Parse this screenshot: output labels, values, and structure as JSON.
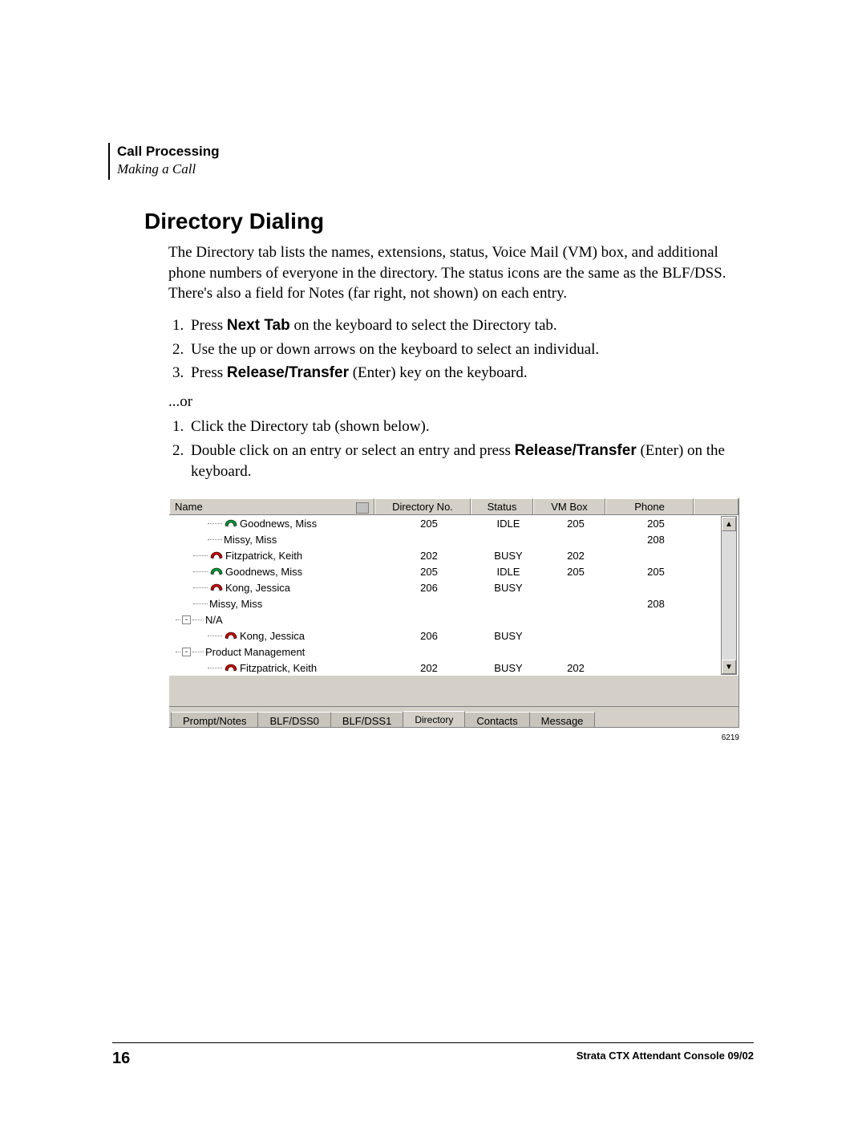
{
  "header": {
    "title": "Call Processing",
    "subtitle": "Making a Call"
  },
  "section": {
    "title": "Directory Dialing",
    "intro": "The Directory tab lists the names, extensions, status, Voice Mail (VM) box, and additional phone numbers of everyone in the directory. The status icons are the same as the BLF/DSS. There's also a field for Notes (far right, not shown) on each entry.",
    "steps_a_1_pre": "Press ",
    "steps_a_1_bold": "Next Tab",
    "steps_a_1_post": " on the keyboard to select the Directory tab.",
    "steps_a_2": "Use the up or down arrows on the keyboard to select an individual.",
    "steps_a_3_pre": "Press ",
    "steps_a_3_bold": "Release/Transfer",
    "steps_a_3_post": " (Enter) key on the keyboard.",
    "or": "...or",
    "steps_b_1": "Click the Directory tab (shown below).",
    "steps_b_2_pre": "Double click on an entry or select an entry and press ",
    "steps_b_2_bold": "Release/Transfer",
    "steps_b_2_post": " (Enter) on the keyboard."
  },
  "figure": {
    "columns": {
      "name": "Name",
      "dir": "Directory No.",
      "status": "Status",
      "vm": "VM Box",
      "phone": "Phone"
    },
    "rows": [
      {
        "indent": 40,
        "icon": "green",
        "name": "Goodnews, Miss",
        "dir": "205",
        "status": "IDLE",
        "vm": "205",
        "phone": "205"
      },
      {
        "indent": 40,
        "icon": "",
        "name": "Missy, Miss",
        "dir": "",
        "status": "",
        "vm": "",
        "phone": "208"
      },
      {
        "indent": 22,
        "icon": "red",
        "name": "Fitzpatrick, Keith",
        "dir": "202",
        "status": "BUSY",
        "vm": "202",
        "phone": ""
      },
      {
        "indent": 22,
        "icon": "green",
        "name": "Goodnews, Miss",
        "dir": "205",
        "status": "IDLE",
        "vm": "205",
        "phone": "205"
      },
      {
        "indent": 22,
        "icon": "red",
        "name": "Kong, Jessica",
        "dir": "206",
        "status": "BUSY",
        "vm": "",
        "phone": ""
      },
      {
        "indent": 22,
        "icon": "",
        "name": "Missy, Miss",
        "dir": "",
        "status": "",
        "vm": "",
        "phone": "208"
      },
      {
        "indent": 6,
        "expander": "-",
        "name": "N/A",
        "dir": "",
        "status": "",
        "vm": "",
        "phone": ""
      },
      {
        "indent": 40,
        "icon": "red",
        "name": "Kong, Jessica",
        "dir": "206",
        "status": "BUSY",
        "vm": "",
        "phone": ""
      },
      {
        "indent": 6,
        "expander": "-",
        "name": "Product Management",
        "dir": "",
        "status": "",
        "vm": "",
        "phone": ""
      },
      {
        "indent": 40,
        "icon": "red",
        "name": "Fitzpatrick, Keith",
        "dir": "202",
        "status": "BUSY",
        "vm": "202",
        "phone": ""
      }
    ],
    "tabs": {
      "t1": "Prompt/Notes",
      "t2": "BLF/DSS0",
      "t3": "BLF/DSS1",
      "t4": "Directory",
      "t5": "Contacts",
      "t6": "Message"
    },
    "ref": "6219",
    "colors": {
      "green": "#009933",
      "red": "#cc0000"
    }
  },
  "footer": {
    "page": "16",
    "pub": "Strata CTX Attendant Console    09/02"
  }
}
